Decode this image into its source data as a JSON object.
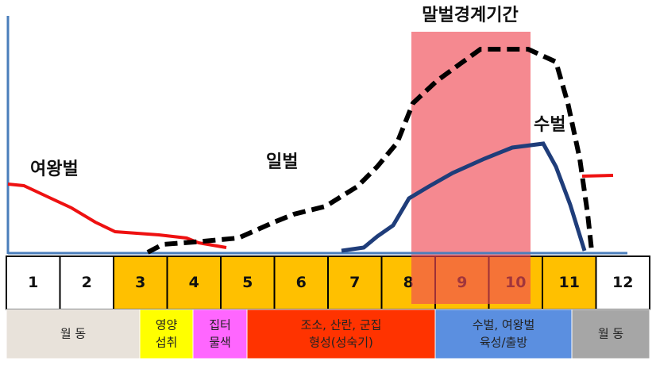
{
  "title": "말벌경계기간",
  "labels": {
    "queen": "여왕벌",
    "worker": "일벌",
    "drone": "수벌"
  },
  "months": [
    "1",
    "2",
    "3",
    "4",
    "5",
    "6",
    "7",
    "8",
    "9",
    "10",
    "11",
    "12"
  ],
  "phases": [
    {
      "lines": [
        "월 동"
      ]
    },
    {
      "lines": [
        "영양",
        "섭취"
      ]
    },
    {
      "lines": [
        "집터",
        "물색"
      ]
    },
    {
      "lines": [
        "조소, 산란, 군집",
        "형성(성숙기)"
      ]
    },
    {
      "lines": [
        "수벌, 여왕벌",
        "육성/출방"
      ]
    },
    {
      "lines": [
        "월 동"
      ]
    }
  ]
}
